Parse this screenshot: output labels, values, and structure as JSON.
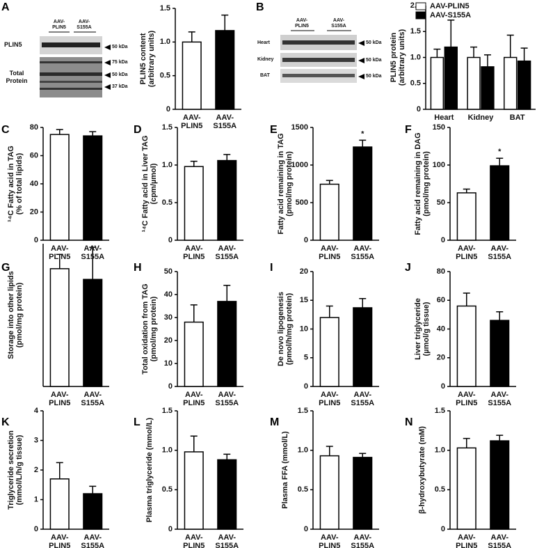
{
  "panel_labels": [
    "A",
    "B",
    "C",
    "D",
    "E",
    "F",
    "G",
    "H",
    "I",
    "J",
    "K",
    "L",
    "M",
    "N"
  ],
  "blots": [
    {
      "groups": [
        "AAV-PLIN5",
        "AAV-S155A"
      ],
      "rows": [
        "PLIN5",
        "Total Protein"
      ],
      "markers": [
        "50 kDa",
        "75 kDa",
        "50 kDa",
        "37 kDa"
      ]
    },
    {
      "groups": [
        "AAV-PLIN5",
        "AAV-S155A"
      ],
      "rows": [
        "Heart",
        "Kidney",
        "BAT"
      ],
      "markers": [
        "50 kDa",
        "50 kDa",
        "50 kDa"
      ]
    }
  ],
  "chart_data": [
    {
      "type": "bar",
      "ylabel": [
        "PLIN5 content",
        "(arbitrary units)"
      ],
      "categories": [
        "AAV-PLIN5",
        "AAV-S155A"
      ],
      "values": [
        1.0,
        1.17
      ],
      "errors": [
        0.15,
        0.23
      ],
      "colors": [
        "#ffffff",
        "#000000"
      ],
      "ylim": [
        0,
        1.5
      ],
      "yticks": [
        0,
        0.5,
        {
          "value": 1,
          "label": "1.0"
        },
        1.5
      ]
    },
    {
      "type": "bar",
      "ylabel": [
        "PLIN5 protein",
        "(arbitrary units)"
      ],
      "categories": [
        "Heart",
        "Kidney",
        "BAT"
      ],
      "series": [
        {
          "name": "AAV-PLIN5",
          "color": "#ffffff",
          "values": [
            1.0,
            1.0,
            1.0
          ],
          "errors": [
            0.16,
            0.2,
            0.43
          ]
        },
        {
          "name": "AAV-S155A",
          "color": "#000000",
          "values": [
            1.2,
            0.82,
            0.93
          ],
          "errors": [
            0.52,
            0.23,
            0.25
          ]
        }
      ],
      "legend": "top",
      "ylim": [
        0,
        2
      ],
      "yticks": [
        0,
        0.5,
        {
          "value": 1,
          "label": "1.0"
        },
        1.5,
        {
          "value": 2,
          "label": "2.0"
        }
      ]
    },
    {
      "type": "bar",
      "ylabel": [
        "¹⁴C Fatty acid in TAG",
        "(% of total lipids)"
      ],
      "categories": [
        "AAV-PLIN5",
        "AAV-S155A"
      ],
      "values": [
        75,
        74
      ],
      "errors": [
        3.5,
        3
      ],
      "colors": [
        "#ffffff",
        "#000000"
      ],
      "ylim": [
        0,
        80
      ],
      "yticks": [
        0,
        20,
        40,
        60,
        80
      ]
    },
    {
      "type": "bar",
      "ylabel": [
        "¹⁴C Fatty acid in Liver TAG",
        "(cpm/µmol)"
      ],
      "categories": [
        "AAV-PLIN5",
        "AAV-S155A"
      ],
      "values": [
        0.98,
        1.06
      ],
      "errors": [
        0.07,
        0.08
      ],
      "colors": [
        "#ffffff",
        "#000000"
      ],
      "ylim": [
        0,
        1.5
      ],
      "yticks": [
        0,
        0.5,
        {
          "value": 1,
          "label": "1.0"
        },
        1.5
      ]
    },
    {
      "type": "bar",
      "ylabel": [
        "Fatty acid remaining in TAG",
        "(pmol/mg protein)"
      ],
      "categories": [
        "AAV-PLIN5",
        "AAV-S155A"
      ],
      "values": [
        745,
        1240
      ],
      "errors": [
        50,
        90
      ],
      "significance": [
        null,
        "*"
      ],
      "colors": [
        "#ffffff",
        "#000000"
      ],
      "ylim": [
        0,
        1500
      ],
      "yticks": [
        0,
        500,
        1000,
        1500
      ]
    },
    {
      "type": "bar",
      "ylabel": [
        "Fatty acid remaining in DAG",
        "(pmol/mg protein)"
      ],
      "categories": [
        "AAV-PLIN5",
        "AAV-S155A"
      ],
      "values": [
        63,
        99
      ],
      "errors": [
        5,
        10
      ],
      "significance": [
        null,
        "*"
      ],
      "colors": [
        "#ffffff",
        "#000000"
      ],
      "ylim": [
        0,
        150
      ],
      "yticks": [
        0,
        50,
        100,
        150
      ]
    },
    {
      "type": "bar",
      "ylabel": [
        "Storage into other lipids",
        "(pmol/mg protein)"
      ],
      "categories": [
        "AAV-PLIN5",
        "AAV-S155A"
      ],
      "values": [
        330,
        300
      ],
      "errors": [
        40,
        90
      ],
      "colors": [
        "#ffffff",
        "#000000"
      ],
      "ylim": [
        0,
        400
      ]
    },
    {
      "type": "bar",
      "ylabel": [
        "Total oxidation from TAG",
        "(pmol/mg protein)"
      ],
      "categories": [
        "AAV-PLIN5",
        "AAV-S155A"
      ],
      "values": [
        28,
        37
      ],
      "errors": [
        7.5,
        7
      ],
      "colors": [
        "#ffffff",
        "#000000"
      ],
      "ylim": [
        0,
        50
      ],
      "yticks": [
        0,
        10,
        20,
        30,
        40,
        50
      ]
    },
    {
      "type": "bar",
      "ylabel": [
        "De novo lipogenesis",
        "(pmol/h/mg protein)"
      ],
      "categories": [
        "AAV-PLIN5",
        "AAV-S155A"
      ],
      "values": [
        12,
        13.7
      ],
      "errors": [
        2,
        1.6
      ],
      "colors": [
        "#ffffff",
        "#000000"
      ],
      "ylim": [
        0,
        20
      ],
      "yticks": [
        0,
        5,
        10,
        15,
        20
      ]
    },
    {
      "type": "bar",
      "ylabel": [
        "Liver triglyceride",
        "(µmol/g tissue)"
      ],
      "categories": [
        "AAV-PLIN5",
        "AAV-S155A"
      ],
      "values": [
        56,
        46
      ],
      "errors": [
        9,
        6
      ],
      "colors": [
        "#ffffff",
        "#000000"
      ],
      "ylim": [
        0,
        80
      ],
      "yticks": [
        0,
        20,
        40,
        60,
        80
      ]
    },
    {
      "type": "bar",
      "ylabel": [
        "Triglyceride secretion",
        "(mmol/L/h/g tissue)"
      ],
      "categories": [
        "AAV-PLIN5",
        "AAV-S155A"
      ],
      "values": [
        1.7,
        1.2
      ],
      "errors": [
        0.55,
        0.25
      ],
      "colors": [
        "#ffffff",
        "#000000"
      ],
      "ylim": [
        0,
        4
      ],
      "yticks": [
        0,
        1,
        2,
        3,
        4
      ]
    },
    {
      "type": "bar",
      "ylabel": [
        "Plasma triglyceride (mmol/L)"
      ],
      "categories": [
        "AAV-PLIN5",
        "AAV-S155A"
      ],
      "values": [
        0.98,
        0.88
      ],
      "errors": [
        0.2,
        0.07
      ],
      "colors": [
        "#ffffff",
        "#000000"
      ],
      "ylim": [
        0,
        1.5
      ],
      "yticks": [
        0,
        0.5,
        {
          "value": 1,
          "label": "1.0"
        },
        1.5
      ]
    },
    {
      "type": "bar",
      "ylabel": [
        "Plasma FFA (mmol/L)"
      ],
      "categories": [
        "AAV-PLIN5",
        "AAV-S155A"
      ],
      "values": [
        0.93,
        0.91
      ],
      "errors": [
        0.12,
        0.05
      ],
      "colors": [
        "#ffffff",
        "#000000"
      ],
      "ylim": [
        0,
        1.5
      ],
      "yticks": [
        0,
        0.5,
        {
          "value": 1,
          "label": "1.0"
        },
        1.5
      ]
    },
    {
      "type": "bar",
      "ylabel": [
        "β-hydroxybutyrate (mM)"
      ],
      "categories": [
        "AAV-PLIN5",
        "AAV-S155A"
      ],
      "values": [
        1.03,
        1.12
      ],
      "errors": [
        0.12,
        0.07
      ],
      "colors": [
        "#ffffff",
        "#000000"
      ],
      "ylim": [
        0,
        1.5
      ],
      "yticks": [
        0,
        0.5,
        {
          "value": 1,
          "label": "1.0"
        },
        1.5
      ]
    }
  ]
}
